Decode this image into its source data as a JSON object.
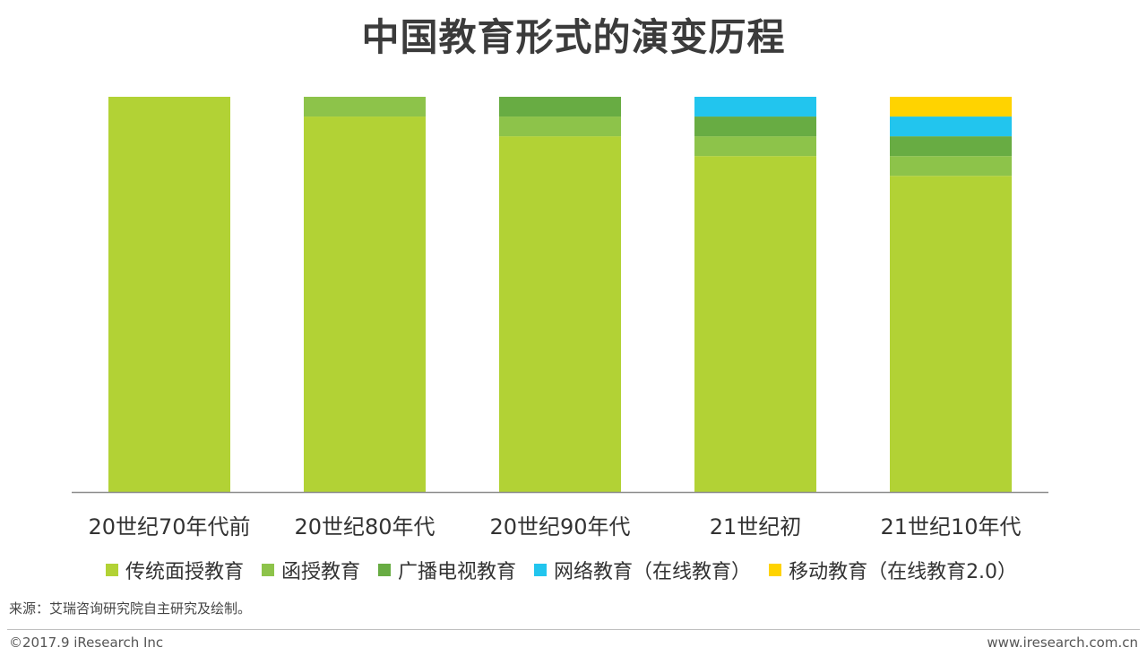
{
  "chart_data": {
    "type": "bar",
    "stacked": true,
    "title": "中国教育形式的演变历程",
    "categories": [
      "20世纪70年代前",
      "20世纪80年代",
      "20世纪90年代",
      "21世纪初",
      "21世纪10年代"
    ],
    "series": [
      {
        "name": "传统面授教育",
        "color": "#b2d235",
        "values": [
          100,
          95,
          90,
          85,
          80
        ]
      },
      {
        "name": "函授教育",
        "color": "#8dc34a",
        "values": [
          0,
          5,
          5,
          5,
          5
        ]
      },
      {
        "name": "广播电视教育",
        "color": "#68ac43",
        "values": [
          0,
          0,
          5,
          5,
          5
        ]
      },
      {
        "name": "网络教育（在线教育）",
        "color": "#22c5ee",
        "values": [
          0,
          0,
          0,
          5,
          5
        ]
      },
      {
        "name": "移动教育（在线教育2.0）",
        "color": "#ffd300",
        "values": [
          0,
          0,
          0,
          0,
          5
        ]
      }
    ],
    "ylim": [
      0,
      100
    ],
    "grid": false,
    "legend_position": "bottom"
  },
  "footer": {
    "source": "来源：艾瑞咨询研究院自主研究及绘制。",
    "copyright": "©2017.9 iResearch Inc",
    "website": "www.iresearch.com.cn"
  }
}
